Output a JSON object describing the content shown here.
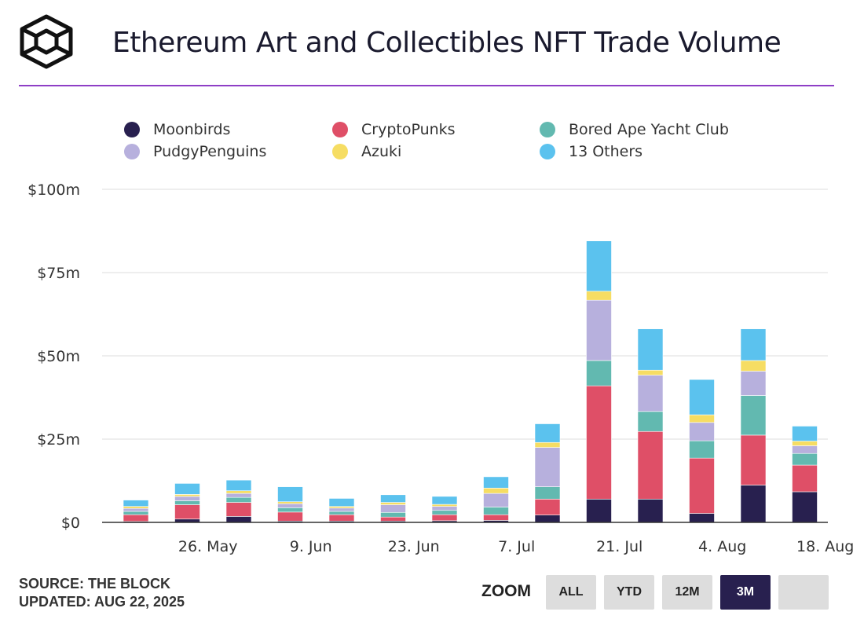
{
  "header": {
    "title": "Ethereum Art and Collectibles NFT Trade Volume"
  },
  "footer": {
    "source": "SOURCE: THE BLOCK",
    "updated": "UPDATED: AUG 22, 2025"
  },
  "zoom": {
    "label": "ZOOM",
    "buttons": [
      "ALL",
      "YTD",
      "12M",
      "3M",
      ""
    ],
    "active": "3M"
  },
  "colors": {
    "accent_rule": "#8e3fc6",
    "Moonbirds": "#28204f",
    "CryptoPunks": "#df4f67",
    "Bored Ape Yacht Club": "#62b9b0",
    "PudgyPenguins": "#b7b0dd",
    "Azuki": "#f6dd63",
    "13 Others": "#5bc2ee"
  },
  "chart_data": {
    "type": "bar",
    "stacked": true,
    "title": "Ethereum Art and Collectibles NFT Trade Volume",
    "ylabel": "",
    "xlabel": "",
    "ylim": [
      0,
      100
    ],
    "yticks": [
      0,
      25,
      50,
      75,
      100
    ],
    "ytick_labels": [
      "$0",
      "$25m",
      "$50m",
      "$75m",
      "$100m"
    ],
    "xtick_labels": [
      "26. May",
      "9. Jun",
      "23. Jun",
      "7. Jul",
      "21. Jul",
      "4. Aug",
      "18. Aug"
    ],
    "xtick_positions": [
      1.4,
      3.4,
      5.4,
      7.4,
      9.4,
      11.4,
      13.4
    ],
    "categories": [
      "1",
      "2",
      "3",
      "4",
      "5",
      "6",
      "7",
      "8",
      "9",
      "10",
      "11",
      "12",
      "13",
      "14"
    ],
    "series": [
      {
        "name": "Moonbirds",
        "values": [
          0.3,
          1.0,
          1.8,
          0.4,
          0.4,
          0.4,
          0.5,
          0.6,
          2.2,
          7.0,
          7.0,
          2.7,
          11.2,
          9.2
        ]
      },
      {
        "name": "CryptoPunks",
        "values": [
          2.0,
          4.3,
          4.2,
          2.7,
          1.9,
          1.2,
          1.8,
          1.7,
          4.8,
          34.0,
          20.3,
          16.6,
          15.0,
          8.0
        ]
      },
      {
        "name": "Bored Ape Yacht Club",
        "values": [
          1.0,
          1.2,
          1.5,
          1.3,
          1.0,
          1.4,
          1.3,
          2.3,
          3.7,
          7.6,
          6.0,
          5.2,
          11.9,
          3.5
        ]
      },
      {
        "name": "PudgyPenguins",
        "values": [
          0.9,
          1.3,
          1.2,
          1.2,
          1.0,
          2.3,
          1.2,
          4.1,
          11.8,
          18.1,
          10.9,
          5.5,
          7.3,
          2.3
        ]
      },
      {
        "name": "Azuki",
        "values": [
          0.6,
          0.6,
          0.8,
          0.6,
          0.5,
          0.7,
          0.6,
          1.6,
          1.5,
          2.7,
          1.5,
          2.3,
          3.2,
          1.4
        ]
      },
      {
        "name": "13 Others",
        "values": [
          1.9,
          3.3,
          3.2,
          4.5,
          2.4,
          2.3,
          2.4,
          3.4,
          5.6,
          15.1,
          12.4,
          10.6,
          9.5,
          4.5
        ]
      }
    ],
    "legend_position": "top",
    "grid": true
  }
}
